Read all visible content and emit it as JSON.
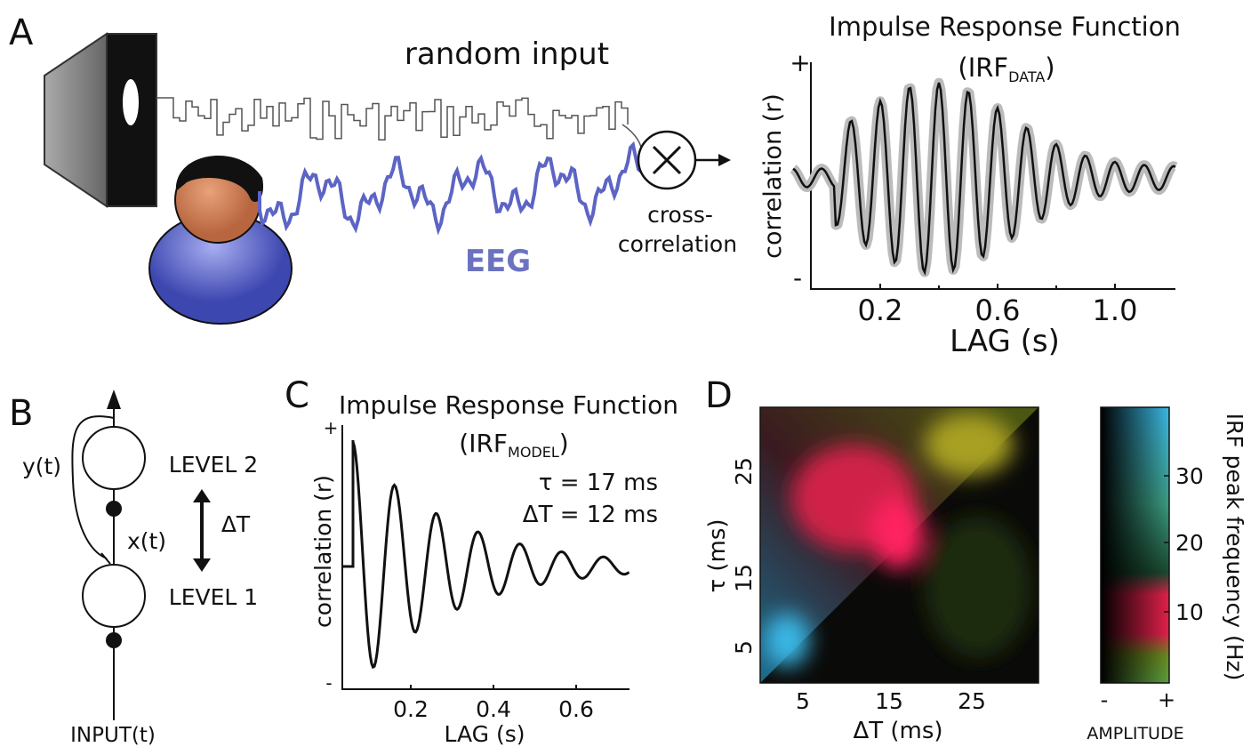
{
  "panels": {
    "a": {
      "letter": "A",
      "input_label": "random input",
      "eeg_label": "EEG",
      "xcorr_label": [
        "cross-",
        "correlation"
      ],
      "plot": {
        "title": "Impulse Response Function",
        "subtitle": [
          "(IRF",
          "DATA",
          ")"
        ],
        "ylabel": "correlation (r)",
        "y_plus": "+",
        "y_minus": "-",
        "xlabel": "LAG (s)",
        "xticks": [
          "0.2",
          "0.6",
          "1.0"
        ]
      }
    },
    "b": {
      "letter": "B",
      "feedback_label": "y(t)",
      "level2": "LEVEL 2",
      "level1": "LEVEL 1",
      "link_label": "x(t)",
      "delay_label": "ΔT",
      "input_label": "INPUT(t)"
    },
    "c": {
      "letter": "C",
      "title": "Impulse Response Function",
      "subtitle": [
        "(IRF",
        "MODEL",
        ")"
      ],
      "params": [
        "τ = 17 ms",
        "ΔT = 12 ms"
      ],
      "ylabel": "correlation (r)",
      "y_plus": "+",
      "y_minus": "-",
      "xlabel": "LAG (s)",
      "xticks": [
        "0.2",
        "0.4",
        "0.6"
      ]
    },
    "d": {
      "letter": "D",
      "ylabel": "τ (ms)",
      "yticks": [
        "25",
        "15",
        "5"
      ],
      "xlabel": "ΔT (ms)",
      "xticks": [
        "5",
        "15",
        "25"
      ],
      "colorbar": {
        "label": "IRF peak frequency (Hz)",
        "ticks": [
          "30",
          "20",
          "10"
        ],
        "minus": "-",
        "plus": "+",
        "caption": "AMPLITUDE"
      }
    }
  }
}
